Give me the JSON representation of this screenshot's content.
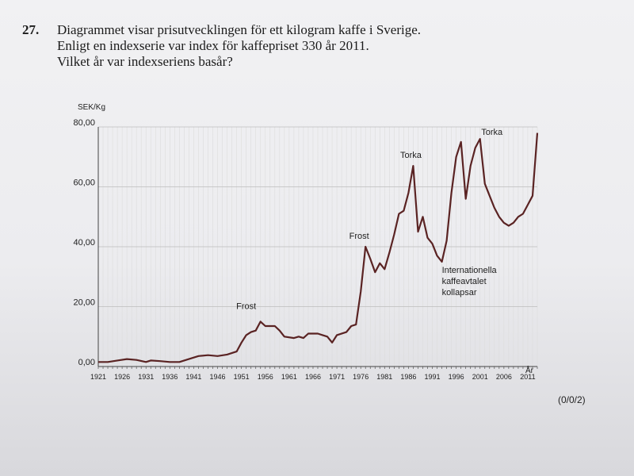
{
  "question": {
    "number": "27.",
    "lines": [
      "Diagrammet visar prisutvecklingen för ett kilogram kaffe i Sverige.",
      "Enligt en indexserie var index för kaffepriset 330 år 2011.",
      "Vilket år var indexseriens basår?"
    ],
    "points": "(0/0/2)"
  },
  "chart_data": {
    "type": "line",
    "ylabel": "SEK/Kg",
    "xlabel": "År",
    "ylim": [
      0,
      80
    ],
    "xlim": [
      1921,
      2013
    ],
    "y_ticks": [
      "0,00",
      "20,00",
      "40,00",
      "60,00",
      "80,00"
    ],
    "y_tick_values": [
      0,
      20,
      40,
      60,
      80
    ],
    "x_ticks": [
      "1921",
      "1926",
      "1931",
      "1936",
      "1941",
      "1946",
      "1951",
      "1956",
      "1961",
      "1966",
      "1971",
      "1976",
      "1981",
      "1986",
      "1991",
      "1996",
      "2001",
      "2006",
      "2011"
    ],
    "x_tick_values": [
      1921,
      1926,
      1931,
      1936,
      1941,
      1946,
      1951,
      1956,
      1961,
      1966,
      1971,
      1976,
      1981,
      1986,
      1991,
      1996,
      2001,
      2006,
      2011
    ],
    "grid": true,
    "line_color": "#5a2323",
    "series": [
      {
        "x": [
          1921,
          1923,
          1925,
          1927,
          1929,
          1931,
          1932,
          1934,
          1936,
          1938,
          1940,
          1942,
          1944,
          1946,
          1948,
          1950,
          1951,
          1952,
          1953,
          1954,
          1955,
          1956,
          1957,
          1958,
          1959,
          1960,
          1962,
          1963,
          1964,
          1965,
          1967,
          1968,
          1969,
          1970,
          1971,
          1973,
          1974,
          1975,
          1976,
          1977,
          1978,
          1979,
          1980,
          1981,
          1982,
          1983,
          1984,
          1985,
          1986,
          1987,
          1988,
          1989,
          1990,
          1991,
          1992,
          1993,
          1994,
          1995,
          1996,
          1997,
          1998,
          1999,
          2000,
          2001,
          2002,
          2003,
          2004,
          2005,
          2006,
          2007,
          2008,
          2009,
          2010,
          2011,
          2012,
          2013
        ],
        "y": [
          1.5,
          1.5,
          2.0,
          2.5,
          2.2,
          1.5,
          2.0,
          1.8,
          1.5,
          1.5,
          2.5,
          3.5,
          3.8,
          3.5,
          4.0,
          5.0,
          8.0,
          10.5,
          11.5,
          12.0,
          15.0,
          13.5,
          13.5,
          13.5,
          12.0,
          10.0,
          9.5,
          10.0,
          9.5,
          11.0,
          11.0,
          10.5,
          10.0,
          8.0,
          10.5,
          11.5,
          13.5,
          14.0,
          25.0,
          40.0,
          36.0,
          31.5,
          34.5,
          32.5,
          38.0,
          44.0,
          51.0,
          52.0,
          58.0,
          67.0,
          45.0,
          50.0,
          43.0,
          41.0,
          37.0,
          35.0,
          42.0,
          58.0,
          70.0,
          75.0,
          56.0,
          67.0,
          73.0,
          76.0,
          61.0,
          57.0,
          53.0,
          50.0,
          48.0,
          47.0,
          48.0,
          50.0,
          51.0,
          54.0,
          57.0,
          78.0
        ]
      }
    ],
    "annotations": [
      {
        "text": "Frost",
        "x": 1952,
        "y": 15
      },
      {
        "text": "Frost",
        "x": 1977,
        "y": 40
      },
      {
        "text": "Torka",
        "x": 1987,
        "y": 67
      },
      {
        "text": "Torka",
        "x": 2001,
        "y": 76
      },
      {
        "text": "Internationella kaffeavtalet kollapsar",
        "x": 1993,
        "y": 35
      }
    ]
  }
}
